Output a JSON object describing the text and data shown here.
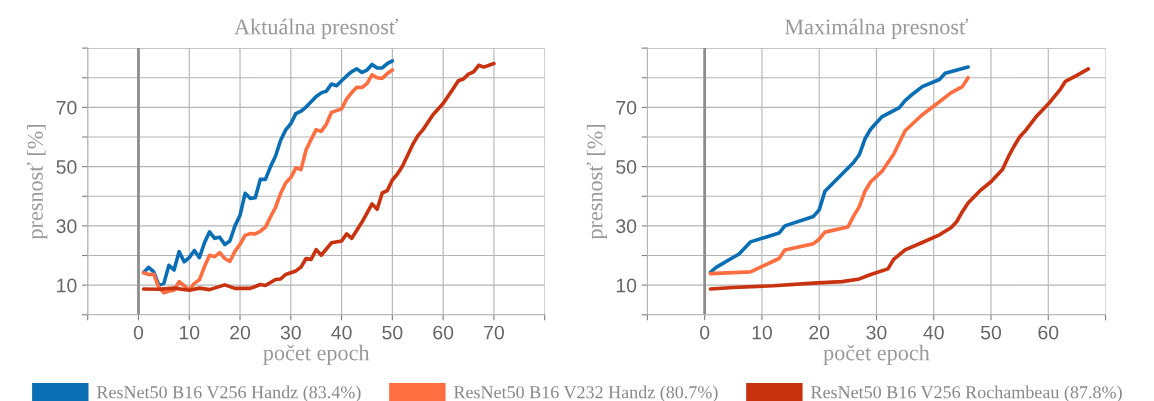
{
  "chart_data": [
    {
      "type": "line",
      "title": "Aktuálna presnosť",
      "xlabel": "počet epoch",
      "ylabel": "presnosť [%]",
      "xlim": [
        -10,
        80
      ],
      "xticks": [
        {
          "value": -10,
          "label": null
        },
        0,
        10,
        20,
        30,
        40,
        50,
        60,
        70,
        {
          "value": 80,
          "label": null
        }
      ],
      "ylim": [
        0,
        90
      ],
      "yticks": [
        {
          "value": 0,
          "label": null
        },
        10,
        {
          "value": 20,
          "label": null
        },
        30,
        {
          "value": 40,
          "label": null
        },
        50,
        {
          "value": 60,
          "label": null
        },
        70,
        {
          "value": 80,
          "label": null
        },
        {
          "value": 90,
          "label": null
        }
      ],
      "grid": true,
      "legend": "bottom",
      "ref_lines": [
        {
          "axis": "x",
          "value": 0,
          "color": "#8c8c8c"
        }
      ],
      "series": [
        {
          "name": "ResNet50 B16 V256 Handz (83.4%)",
          "color": "#0a6eb4",
          "x": [
            1,
            2,
            3,
            4,
            5,
            6,
            7,
            8,
            9,
            10,
            11,
            12,
            13,
            14,
            15,
            16,
            17,
            18,
            19,
            20,
            21,
            22,
            23,
            24,
            25,
            26,
            27,
            28,
            29,
            30,
            31,
            32,
            33,
            34,
            35,
            36,
            37,
            38,
            39,
            40,
            41,
            42,
            43,
            44,
            45,
            46,
            47,
            48,
            49,
            50
          ],
          "values": [
            14.3,
            16,
            14.5,
            10,
            10.6,
            16.7,
            15.1,
            21.3,
            17.9,
            19.3,
            21.7,
            19.3,
            24.3,
            28,
            25.8,
            26.2,
            23.7,
            24.9,
            30,
            33.6,
            41,
            39.3,
            39.5,
            45.7,
            45.7,
            50,
            53.6,
            58.9,
            62.4,
            64.5,
            67.9,
            68.7,
            70.1,
            71.9,
            73.7,
            74.9,
            75.5,
            77.9,
            77.3,
            79,
            80.6,
            82.1,
            83,
            81.8,
            82.6,
            84.5,
            83.3,
            83.3,
            84.8,
            85.7
          ]
        },
        {
          "name": "ResNet50 B16 V232 Handz (80.7%)",
          "color": "#ff6e40",
          "x": [
            1,
            2,
            3,
            4,
            5,
            6,
            7,
            8,
            9,
            10,
            11,
            12,
            13,
            14,
            15,
            16,
            17,
            18,
            19,
            20,
            21,
            22,
            23,
            24,
            25,
            26,
            27,
            28,
            29,
            30,
            31,
            32,
            33,
            34,
            35,
            36,
            37,
            38,
            39,
            40,
            41,
            42,
            43,
            44,
            45,
            46,
            47,
            48,
            49,
            50
          ],
          "values": [
            14.2,
            13.6,
            13.7,
            9.2,
            7.4,
            8,
            8.3,
            11.2,
            9.8,
            8.3,
            10.6,
            11.8,
            16.3,
            20.1,
            19.6,
            21,
            19,
            18,
            21.4,
            23.8,
            26.8,
            27.4,
            27.3,
            28.2,
            29.6,
            33,
            36.3,
            41,
            44.5,
            46.3,
            49.6,
            49,
            55.6,
            59.2,
            62.5,
            61.9,
            64.3,
            68.3,
            68.9,
            69.5,
            72.9,
            75,
            76.8,
            76.7,
            78,
            81,
            80,
            79.8,
            81.4,
            82.6
          ]
        },
        {
          "name": "ResNet50 B16 V256 Rochambeau (87.8%)",
          "color": "#c8320e",
          "x": [
            1,
            4,
            7,
            10,
            12,
            14,
            17,
            19,
            22,
            24,
            25,
            27,
            28,
            29,
            31,
            32,
            33,
            34,
            35,
            36,
            38,
            40,
            41,
            42,
            44,
            46,
            47,
            48,
            49,
            50,
            51,
            52,
            54,
            55,
            56,
            58,
            60,
            62,
            63,
            64,
            65,
            66,
            67,
            68,
            70
          ],
          "values": [
            8.7,
            8.6,
            9,
            8.3,
            9,
            8.5,
            10.1,
            8.9,
            8.9,
            10.2,
            9.9,
            11.9,
            12.1,
            13.6,
            14.8,
            16.1,
            19,
            18.7,
            22,
            20.1,
            24.3,
            24.9,
            27.3,
            25.8,
            31.2,
            37.4,
            35.6,
            41.1,
            41.9,
            45.5,
            47.5,
            50.2,
            57.4,
            60.4,
            62.4,
            67.5,
            71.3,
            76.4,
            79,
            79.6,
            81.2,
            82,
            84.2,
            83.6,
            84.8
          ]
        }
      ]
    },
    {
      "type": "line",
      "title": "Maximálna presnosť",
      "xlabel": "počet epoch",
      "ylabel": "presnosť [%]",
      "xlim": [
        -10,
        70
      ],
      "xticks": [
        {
          "value": -10,
          "label": null
        },
        0,
        10,
        20,
        30,
        40,
        50,
        60,
        {
          "value": 70,
          "label": null
        }
      ],
      "ylim": [
        0,
        90
      ],
      "yticks": [
        {
          "value": 0,
          "label": null
        },
        10,
        {
          "value": 20,
          "label": null
        },
        30,
        {
          "value": 40,
          "label": null
        },
        50,
        {
          "value": 60,
          "label": null
        },
        70,
        {
          "value": 80,
          "label": null
        },
        {
          "value": 90,
          "label": null
        }
      ],
      "grid": true,
      "ref_lines": [
        {
          "axis": "x",
          "value": 0,
          "color": "#8c8c8c"
        }
      ],
      "series": [
        {
          "color": "#0a6eb4",
          "x": [
            1,
            2,
            6,
            8,
            13,
            14,
            19,
            20,
            21,
            24,
            26,
            27,
            28,
            29,
            31,
            34,
            35,
            36,
            38,
            41,
            42,
            46
          ],
          "values": [
            14.3,
            16,
            20.5,
            24.6,
            27.6,
            30,
            33.2,
            35.4,
            41.7,
            47.5,
            51.4,
            54,
            59.4,
            62.7,
            66.9,
            69.9,
            72.3,
            74,
            77,
            79.4,
            81.5,
            83.6
          ]
        },
        {
          "color": "#ff6e40",
          "x": [
            1,
            8,
            13,
            14,
            19,
            20,
            21,
            25,
            26,
            27,
            28,
            29,
            31,
            33,
            35,
            38,
            41,
            43,
            45,
            46
          ],
          "values": [
            13.9,
            14.5,
            19,
            21.9,
            24,
            25.5,
            27.9,
            29.6,
            33.3,
            36.5,
            41.7,
            44.9,
            48.5,
            54.2,
            62.1,
            67.5,
            71.9,
            74.9,
            77,
            80
          ]
        },
        {
          "color": "#c8320e",
          "x": [
            1,
            5,
            12,
            19,
            24,
            27,
            29,
            32,
            33,
            35,
            38,
            41,
            43,
            44,
            45,
            46,
            48,
            50,
            52,
            53,
            54,
            55,
            56,
            58,
            60,
            62,
            63,
            65,
            67
          ],
          "values": [
            8.7,
            9.2,
            9.8,
            10.7,
            11.2,
            12.1,
            13.6,
            15.5,
            18.7,
            21.9,
            24.4,
            27,
            29.4,
            31.4,
            34.8,
            37.7,
            41.7,
            44.9,
            49,
            53.2,
            56.8,
            60,
            62.1,
            67.1,
            71.1,
            75.8,
            78.8,
            80.8,
            83
          ]
        }
      ]
    }
  ]
}
